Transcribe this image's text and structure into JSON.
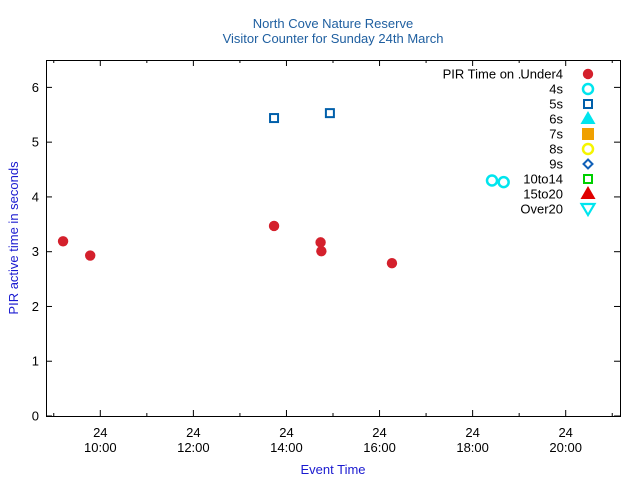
{
  "chart_data": {
    "type": "scatter",
    "title": "North Cove Nature Reserve",
    "subtitle": "Visitor Counter for Sunday 24th March",
    "xlabel": "Event Time",
    "ylabel": "PIR active time in seconds",
    "xlim": [
      "08:50",
      "21:10"
    ],
    "ylim": [
      0,
      6.5
    ],
    "x_ticks": [
      {
        "t": "10:00",
        "day": "24",
        "time": "10:00"
      },
      {
        "t": "12:00",
        "day": "24",
        "time": "12:00"
      },
      {
        "t": "14:00",
        "day": "24",
        "time": "14:00"
      },
      {
        "t": "16:00",
        "day": "24",
        "time": "16:00"
      },
      {
        "t": "18:00",
        "day": "24",
        "time": "18:00"
      },
      {
        "t": "20:00",
        "day": "24",
        "time": "20:00"
      }
    ],
    "y_ticks": [
      "0",
      "1",
      "2",
      "3",
      "4",
      "5",
      "6"
    ],
    "legend_title": "PIR Time on ..",
    "legend_position": "top-right",
    "series": [
      {
        "name": "Under4",
        "marker": "circle-filled",
        "color": "#d4202c",
        "points": [
          {
            "x": "09:12",
            "y": 3.19
          },
          {
            "x": "09:47",
            "y": 2.93
          },
          {
            "x": "13:44",
            "y": 3.47
          },
          {
            "x": "14:44",
            "y": 3.17
          },
          {
            "x": "14:45",
            "y": 3.01
          },
          {
            "x": "16:16",
            "y": 2.79
          }
        ]
      },
      {
        "name": "4s",
        "marker": "circle-open",
        "color": "#00e5ee",
        "points": [
          {
            "x": "18:25",
            "y": 4.3
          },
          {
            "x": "18:40",
            "y": 4.27
          }
        ]
      },
      {
        "name": "5s",
        "marker": "square-open",
        "color": "#005faa",
        "points": [
          {
            "x": "13:44",
            "y": 5.44
          },
          {
            "x": "14:56",
            "y": 5.53
          }
        ]
      },
      {
        "name": "6s",
        "marker": "triangle-up-filled",
        "color": "#00e5ee",
        "points": []
      },
      {
        "name": "7s",
        "marker": "square-filled",
        "color": "#f0a000",
        "points": []
      },
      {
        "name": "8s",
        "marker": "circle-open",
        "color": "#f5f500",
        "points": []
      },
      {
        "name": "9s",
        "marker": "diamond-open",
        "color": "#1060b8",
        "points": []
      },
      {
        "name": "10to14",
        "marker": "square-open",
        "color": "#00d000",
        "points": []
      },
      {
        "name": "15to20",
        "marker": "triangle-up-filled",
        "color": "#e00000",
        "points": []
      },
      {
        "name": "Over20",
        "marker": "triangle-down-open",
        "color": "#00e5ee",
        "points": []
      }
    ]
  }
}
